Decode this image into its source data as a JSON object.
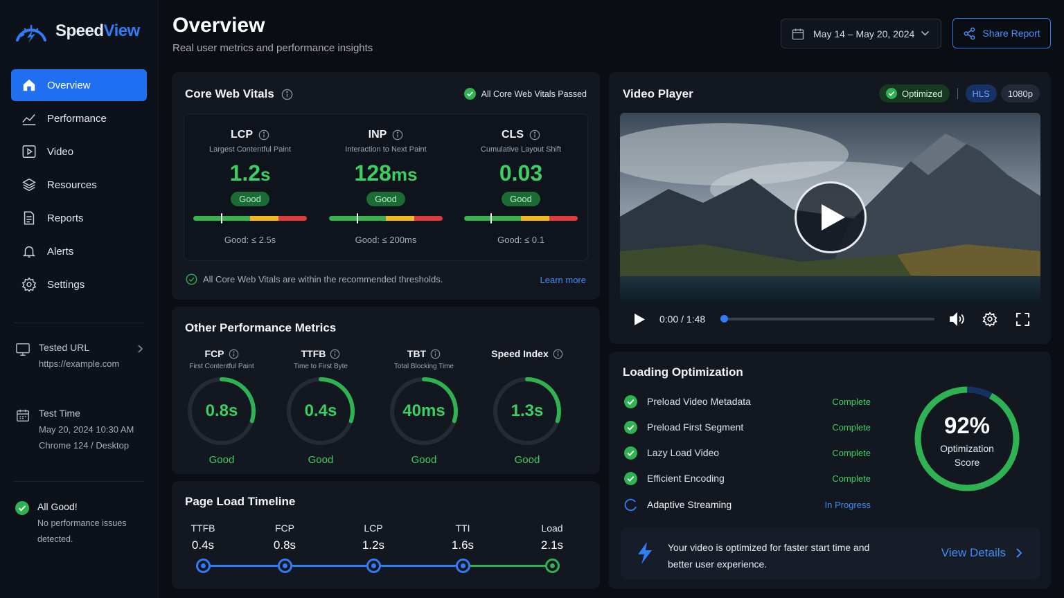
{
  "brand": {
    "name_a": "Speed",
    "name_b": "View"
  },
  "sidebar": {
    "items": [
      {
        "label": "Overview",
        "icon": "home-icon",
        "active": true
      },
      {
        "label": "Performance",
        "icon": "chart-line-icon"
      },
      {
        "label": "Video",
        "icon": "video-icon"
      },
      {
        "label": "Resources",
        "icon": "layers-icon"
      },
      {
        "label": "Reports",
        "icon": "document-icon"
      },
      {
        "label": "Alerts",
        "icon": "bell-icon"
      },
      {
        "label": "Settings",
        "icon": "gear-icon"
      }
    ],
    "tested_url_label": "Tested URL",
    "tested_url": "https://example.com",
    "test_time_label": "Test Time",
    "test_time": "May 20, 2024 10:30 AM",
    "test_env": "Chrome 124 / Desktop",
    "status_title": "All Good!",
    "status_line1": "No performance issues",
    "status_line2": "detected."
  },
  "header": {
    "title": "Overview",
    "subtitle": "Real user metrics and performance insights",
    "date_range": "May 14 – May 20, 2024",
    "share_label": "Share Report"
  },
  "cwv": {
    "title": "Core Web Vitals",
    "passed_label": "All Core Web Vitals Passed",
    "metrics": [
      {
        "name": "LCP",
        "desc": "Largest Contentful Paint",
        "value": "1.2",
        "unit": "s",
        "rating": "Good",
        "threshold": "Good: ≤ 2.5s",
        "position": 0.25
      },
      {
        "name": "INP",
        "desc": "Interaction to Next Paint",
        "value": "128",
        "unit": "ms",
        "rating": "Good",
        "threshold": "Good: ≤ 200ms",
        "position": 0.25
      },
      {
        "name": "CLS",
        "desc": "Cumulative Layout Shift",
        "value": "0.03",
        "unit": "",
        "rating": "Good",
        "threshold": "Good: ≤ 0.1",
        "position": 0.24
      }
    ],
    "footer_text": "All Core Web Vitals are within the recommended thresholds.",
    "learn_more": "Learn more"
  },
  "other": {
    "title": "Other Performance Metrics",
    "metrics": [
      {
        "name": "FCP",
        "desc": "First Contentful Paint",
        "value": "0.8s",
        "rating": "Good",
        "fraction": 0.3
      },
      {
        "name": "TTFB",
        "desc": "Time to First Byte",
        "value": "0.4s",
        "rating": "Good",
        "fraction": 0.3
      },
      {
        "name": "TBT",
        "desc": "Total Blocking Time",
        "value": "40ms",
        "rating": "Good",
        "fraction": 0.3
      },
      {
        "name": "Speed Index",
        "desc": "",
        "value": "1.3s",
        "rating": "Good",
        "fraction": 0.3
      }
    ]
  },
  "timeline": {
    "title": "Page Load Timeline",
    "points": [
      {
        "name": "TTFB",
        "value": "0.4s"
      },
      {
        "name": "FCP",
        "value": "0.8s"
      },
      {
        "name": "LCP",
        "value": "1.2s"
      },
      {
        "name": "TTI",
        "value": "1.6s"
      },
      {
        "name": "Load",
        "value": "2.1s"
      }
    ]
  },
  "video": {
    "title": "Video Player",
    "badge_optimized": "Optimized",
    "badge_format": "HLS",
    "badge_quality": "1080p",
    "time": "0:00 / 1:48",
    "progress": 0.0
  },
  "loading": {
    "title": "Loading Optimization",
    "items": [
      {
        "label": "Preload Video Metadata",
        "status": "Complete",
        "done": true
      },
      {
        "label": "Preload First Segment",
        "status": "Complete",
        "done": true
      },
      {
        "label": "Lazy Load Video",
        "status": "Complete",
        "done": true
      },
      {
        "label": "Efficient Encoding",
        "status": "Complete",
        "done": true
      },
      {
        "label": "Adaptive Streaming",
        "status": "In Progress",
        "done": false
      }
    ],
    "score": "92%",
    "score_label_1": "Optimization",
    "score_label_2": "Score",
    "score_value": 92,
    "banner_line1": "Your video is optimized for faster start time and",
    "banner_line2": "better user experience.",
    "view_details": "View Details"
  },
  "colors": {
    "accent": "#1f6ff0",
    "good": "#3ccf63",
    "warn": "#f5b71f",
    "bad": "#e03b3b"
  }
}
